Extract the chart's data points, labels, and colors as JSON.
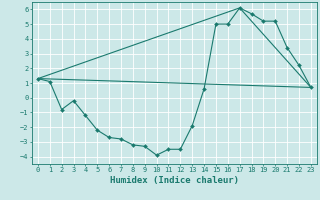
{
  "line1": {
    "x": [
      0,
      1,
      2,
      3,
      4,
      5,
      6,
      7,
      8,
      9,
      10,
      11,
      12,
      13,
      14,
      15,
      16,
      17,
      18,
      19,
      20,
      21,
      22,
      23
    ],
    "y": [
      1.3,
      1.1,
      -0.8,
      -0.2,
      -1.2,
      -2.2,
      -2.7,
      -2.8,
      -3.2,
      -3.3,
      -3.9,
      -3.5,
      -3.5,
      -1.9,
      0.6,
      5.0,
      5.0,
      6.1,
      5.7,
      5.2,
      5.2,
      3.4,
      2.2,
      0.7
    ],
    "color": "#1a7a6e",
    "marker": "D",
    "markersize": 2.0,
    "linewidth": 0.8
  },
  "line2_x": [
    0,
    17,
    23
  ],
  "line2_y": [
    1.3,
    6.1,
    0.7
  ],
  "line3_x": [
    0,
    23
  ],
  "line3_y": [
    1.3,
    0.7
  ],
  "line_color": "#1a7a6e",
  "xlabel": "Humidex (Indice chaleur)",
  "xlim": [
    -0.5,
    23.5
  ],
  "ylim": [
    -4.5,
    6.5
  ],
  "yticks": [
    -4,
    -3,
    -2,
    -1,
    0,
    1,
    2,
    3,
    4,
    5,
    6
  ],
  "xticks": [
    0,
    1,
    2,
    3,
    4,
    5,
    6,
    7,
    8,
    9,
    10,
    11,
    12,
    13,
    14,
    15,
    16,
    17,
    18,
    19,
    20,
    21,
    22,
    23
  ],
  "bg_color": "#cce8e8",
  "grid_color": "#ffffff",
  "tick_fontsize": 5.0,
  "label_fontsize": 6.5
}
